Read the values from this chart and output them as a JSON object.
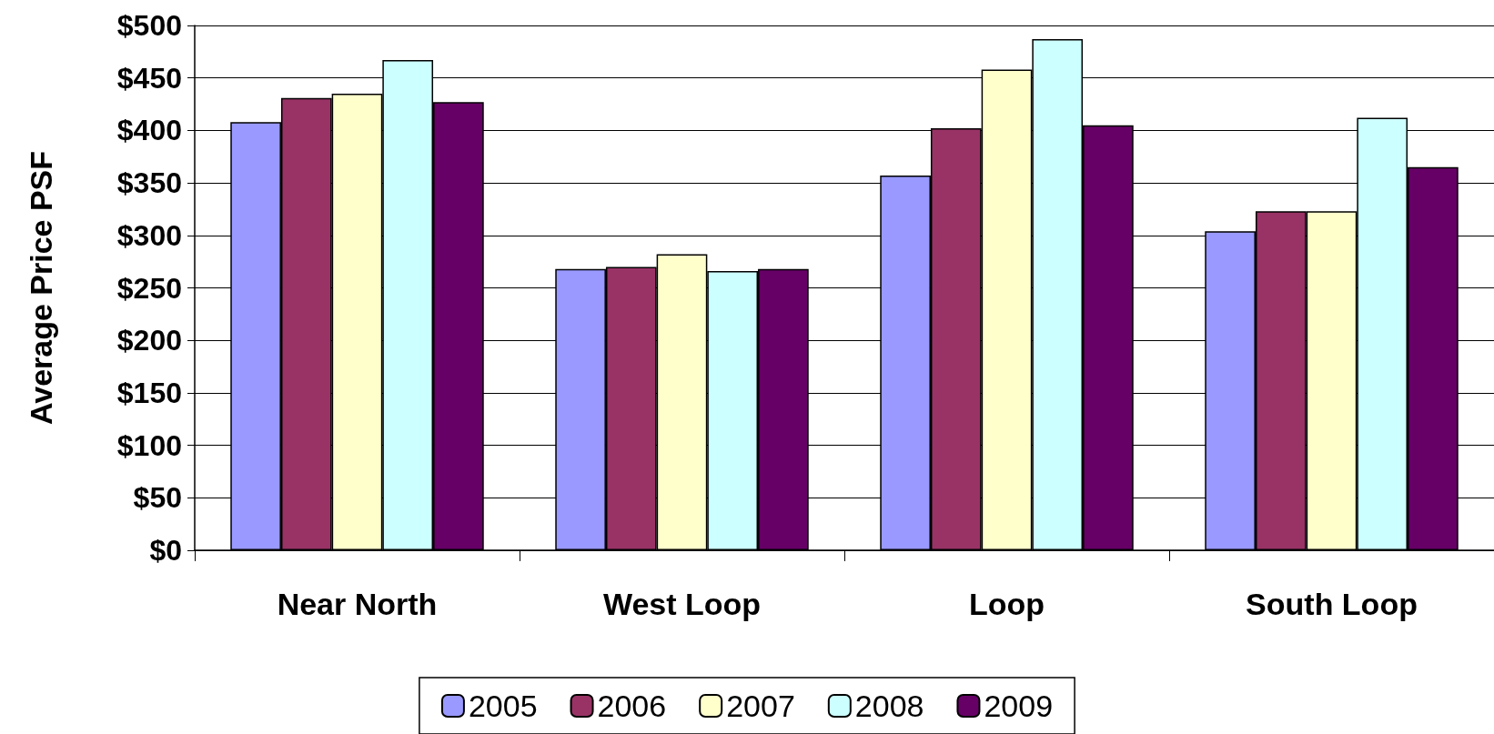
{
  "chart_data": {
    "type": "bar",
    "ylabel": "Average Price PSF",
    "categories": [
      "Near North",
      "West Loop",
      "Loop",
      "South Loop"
    ],
    "series": [
      {
        "name": "2005",
        "color": "#9999ff",
        "values": [
          408,
          268,
          357,
          304
        ]
      },
      {
        "name": "2006",
        "color": "#993366",
        "values": [
          431,
          270,
          402,
          323
        ]
      },
      {
        "name": "2007",
        "color": "#ffffcc",
        "values": [
          435,
          282,
          458,
          323
        ]
      },
      {
        "name": "2008",
        "color": "#ccffff",
        "values": [
          467,
          266,
          487,
          412
        ]
      },
      {
        "name": "2009",
        "color": "#660066",
        "values": [
          427,
          268,
          405,
          365
        ]
      }
    ],
    "ylim": [
      0,
      500
    ],
    "yticks": [
      {
        "value": 0,
        "label": "$0"
      },
      {
        "value": 50,
        "label": "$50"
      },
      {
        "value": 100,
        "label": "$100"
      },
      {
        "value": 150,
        "label": "$150"
      },
      {
        "value": 200,
        "label": "$200"
      },
      {
        "value": 250,
        "label": "$250"
      },
      {
        "value": 300,
        "label": "$300"
      },
      {
        "value": 350,
        "label": "$350"
      },
      {
        "value": 400,
        "label": "$400"
      },
      {
        "value": 450,
        "label": "$450"
      },
      {
        "value": 500,
        "label": "$500"
      }
    ],
    "grid": "y",
    "legend": "bottom"
  }
}
